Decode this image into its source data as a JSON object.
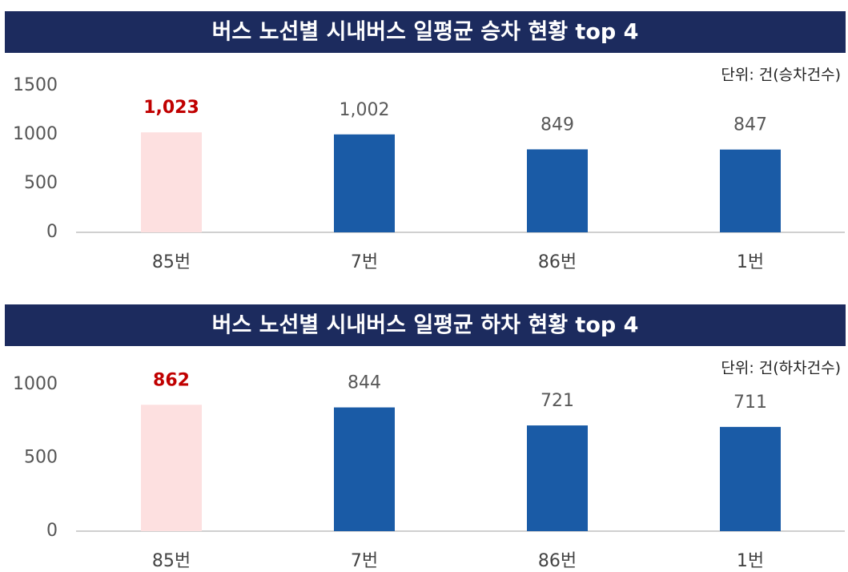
{
  "chart_data": [
    {
      "type": "bar",
      "title": "버스 노선별 시내버스 일평균 승차 현황 top 4",
      "unit": "단위: 건(승차건수)",
      "categories": [
        "85번",
        "7번",
        "86번",
        "1번"
      ],
      "values": [
        1023,
        1002,
        849,
        847
      ],
      "value_labels": [
        "1,023",
        "1,002",
        "849",
        "847"
      ],
      "colors": [
        "#fde0e0",
        "#1a5ba6",
        "#1a5ba6",
        "#1a5ba6"
      ],
      "label_colors": [
        "#c00000",
        "#595959",
        "#595959",
        "#595959"
      ],
      "ylim": [
        0,
        1500
      ],
      "yticks": [
        0,
        500,
        1000,
        1500
      ]
    },
    {
      "type": "bar",
      "title": "버스 노선별 시내버스 일평균 하차 현황 top 4",
      "unit": "단위: 건(하차건수)",
      "categories": [
        "85번",
        "7번",
        "86번",
        "1번"
      ],
      "values": [
        862,
        844,
        721,
        711
      ],
      "colors": [
        "#fde0e0",
        "#1a5ba6",
        "#1a5ba6",
        "#1a5ba6"
      ],
      "label_colors": [
        "#c00000",
        "#595959",
        "#595959",
        "#595959"
      ],
      "ylim": [
        0,
        1000
      ],
      "yticks": [
        0,
        500,
        1000
      ]
    }
  ]
}
